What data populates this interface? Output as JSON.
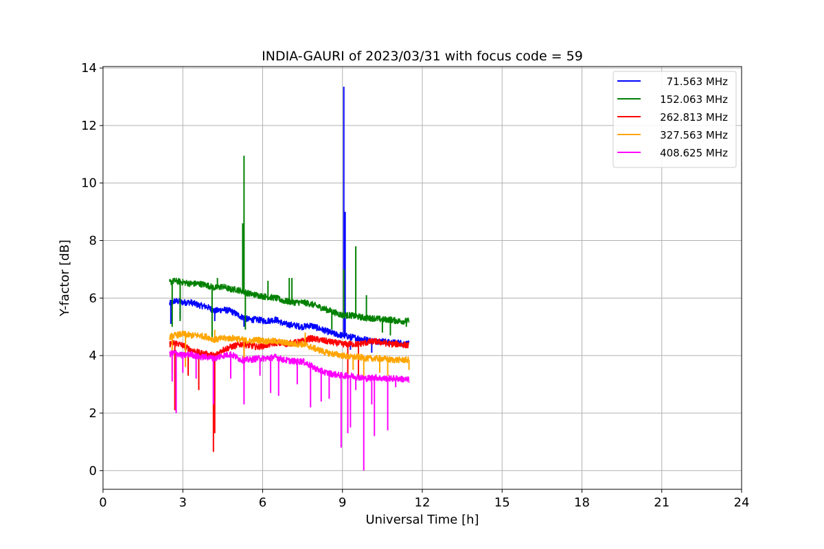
{
  "chart_data": {
    "type": "line",
    "title": "INDIA-GAURI of 2023/03/31 with focus code = 59",
    "xlabel": "Universal Time [h]",
    "ylabel": "Y-factor [dB]",
    "xlim": [
      0,
      24
    ],
    "ylim": [
      -0.65,
      14.05
    ],
    "xticks": [
      0,
      3,
      6,
      9,
      12,
      15,
      18,
      21,
      24
    ],
    "xtick_labels": [
      "0",
      "3",
      "6",
      "9",
      "12",
      "15",
      "18",
      "21",
      "24"
    ],
    "yticks": [
      0,
      2,
      4,
      6,
      8,
      10,
      12,
      14
    ],
    "ytick_labels": [
      "0",
      "2",
      "4",
      "6",
      "8",
      "10",
      "12",
      "14"
    ],
    "grid": true,
    "legend_position": "top-right",
    "series": [
      {
        "name": "  71.563 MHz",
        "color": "#0000ff",
        "x": [
          2.5,
          2.7,
          3.0,
          3.3,
          3.6,
          3.9,
          4.2,
          4.5,
          4.8,
          5.0,
          5.2,
          5.5,
          5.8,
          6.1,
          6.5,
          6.8,
          7.2,
          7.5,
          7.8,
          8.1,
          8.4,
          8.7,
          9.0,
          9.3,
          9.6,
          9.9,
          10.2,
          10.5,
          10.8,
          11.1,
          11.5
        ],
        "y": [
          5.8,
          5.9,
          5.85,
          5.85,
          5.75,
          5.7,
          5.55,
          5.6,
          5.55,
          5.45,
          5.35,
          5.25,
          5.25,
          5.2,
          5.25,
          5.1,
          5.05,
          5.0,
          5.05,
          4.95,
          4.85,
          4.75,
          4.7,
          4.65,
          4.6,
          4.55,
          4.5,
          4.5,
          4.45,
          4.45,
          4.4
        ],
        "spikes": [
          [
            2.55,
            5.1
          ],
          [
            2.9,
            5.3
          ],
          [
            4.2,
            5.2
          ],
          [
            5.3,
            5.0
          ],
          [
            9.05,
            13.35
          ],
          [
            9.1,
            9.0
          ],
          [
            9.3,
            4.2
          ],
          [
            10.1,
            4.1
          ]
        ]
      },
      {
        "name": "152.063 MHz",
        "color": "#008000",
        "x": [
          2.5,
          2.7,
          3.0,
          3.3,
          3.6,
          3.9,
          4.2,
          4.5,
          4.8,
          5.0,
          5.2,
          5.5,
          5.8,
          6.1,
          6.5,
          6.8,
          7.2,
          7.5,
          7.8,
          8.1,
          8.4,
          8.7,
          9.0,
          9.3,
          9.6,
          9.9,
          10.2,
          10.5,
          10.8,
          11.1,
          11.5
        ],
        "y": [
          6.55,
          6.6,
          6.55,
          6.5,
          6.5,
          6.45,
          6.35,
          6.4,
          6.3,
          6.3,
          6.25,
          6.15,
          6.1,
          6.05,
          6.0,
          5.9,
          5.85,
          5.85,
          5.8,
          5.7,
          5.6,
          5.5,
          5.4,
          5.4,
          5.35,
          5.3,
          5.3,
          5.25,
          5.25,
          5.2,
          5.2
        ],
        "spikes": [
          [
            2.6,
            5.0
          ],
          [
            2.9,
            5.2
          ],
          [
            4.1,
            4.6
          ],
          [
            4.3,
            6.7
          ],
          [
            5.25,
            8.6
          ],
          [
            5.3,
            10.95
          ],
          [
            5.35,
            4.9
          ],
          [
            6.2,
            6.6
          ],
          [
            7.0,
            6.7
          ],
          [
            7.1,
            6.7
          ],
          [
            8.6,
            4.9
          ],
          [
            9.05,
            7.0
          ],
          [
            9.5,
            7.8
          ],
          [
            9.9,
            6.1
          ],
          [
            10.5,
            4.8
          ],
          [
            10.8,
            4.7
          ],
          [
            11.4,
            5.0
          ]
        ]
      },
      {
        "name": "262.813 MHz",
        "color": "#ff0000",
        "x": [
          2.5,
          2.7,
          3.0,
          3.3,
          3.6,
          3.9,
          4.2,
          4.5,
          4.8,
          5.0,
          5.2,
          5.5,
          5.8,
          6.1,
          6.5,
          6.8,
          7.2,
          7.5,
          7.8,
          8.1,
          8.4,
          8.7,
          9.0,
          9.3,
          9.6,
          9.9,
          10.2,
          10.5,
          10.8,
          11.1,
          11.5
        ],
        "y": [
          4.4,
          4.45,
          4.35,
          4.2,
          4.1,
          4.05,
          4.0,
          4.2,
          4.3,
          4.35,
          4.4,
          4.35,
          4.3,
          4.35,
          4.45,
          4.4,
          4.45,
          4.5,
          4.6,
          4.55,
          4.5,
          4.45,
          4.4,
          4.4,
          4.4,
          4.45,
          4.5,
          4.45,
          4.4,
          4.4,
          4.35
        ],
        "spikes": [
          [
            2.7,
            2.1
          ],
          [
            3.2,
            3.3
          ],
          [
            3.6,
            2.8
          ],
          [
            4.15,
            0.65
          ],
          [
            4.2,
            1.3
          ],
          [
            5.3,
            3.5
          ],
          [
            9.2,
            2.0
          ],
          [
            9.6,
            3.2
          ]
        ]
      },
      {
        "name": "327.563 MHz",
        "color": "#ffa500",
        "x": [
          2.5,
          2.7,
          3.0,
          3.3,
          3.6,
          3.9,
          4.2,
          4.5,
          4.8,
          5.0,
          5.2,
          5.5,
          5.8,
          6.1,
          6.5,
          6.8,
          7.2,
          7.5,
          7.8,
          8.1,
          8.4,
          8.7,
          9.0,
          9.3,
          9.6,
          9.9,
          10.2,
          10.5,
          10.8,
          11.1,
          11.5
        ],
        "y": [
          4.65,
          4.7,
          4.75,
          4.7,
          4.7,
          4.65,
          4.55,
          4.6,
          4.6,
          4.6,
          4.55,
          4.5,
          4.55,
          4.5,
          4.5,
          4.45,
          4.4,
          4.4,
          4.3,
          4.2,
          4.1,
          4.05,
          4.0,
          3.95,
          3.95,
          3.9,
          3.9,
          3.9,
          3.85,
          3.85,
          3.85
        ],
        "spikes": [
          [
            2.6,
            3.4
          ],
          [
            3.1,
            3.6
          ],
          [
            4.2,
            4.9
          ],
          [
            5.3,
            3.9
          ],
          [
            7.6,
            4.8
          ],
          [
            9.4,
            3.5
          ],
          [
            9.8,
            3.2
          ],
          [
            10.4,
            3.4
          ],
          [
            10.7,
            3.3
          ],
          [
            11.5,
            3.5
          ]
        ]
      },
      {
        "name": "408.625 MHz",
        "color": "#ff00ff",
        "x": [
          2.5,
          2.7,
          3.0,
          3.3,
          3.6,
          3.9,
          4.2,
          4.5,
          4.8,
          5.0,
          5.2,
          5.5,
          5.8,
          6.1,
          6.5,
          6.8,
          7.2,
          7.5,
          7.8,
          8.1,
          8.4,
          8.7,
          9.0,
          9.3,
          9.6,
          9.9,
          10.2,
          10.5,
          10.8,
          11.1,
          11.5
        ],
        "y": [
          4.05,
          4.1,
          4.0,
          4.05,
          3.95,
          3.95,
          3.9,
          4.0,
          4.05,
          3.95,
          3.85,
          3.85,
          3.9,
          3.9,
          3.95,
          3.85,
          3.8,
          3.8,
          3.65,
          3.5,
          3.4,
          3.35,
          3.3,
          3.3,
          3.25,
          3.2,
          3.25,
          3.2,
          3.2,
          3.2,
          3.15
        ],
        "spikes": [
          [
            2.6,
            3.1
          ],
          [
            2.75,
            2.0
          ],
          [
            3.0,
            3.4
          ],
          [
            3.5,
            3.2
          ],
          [
            4.15,
            2.3
          ],
          [
            4.8,
            3.2
          ],
          [
            5.3,
            2.3
          ],
          [
            5.9,
            3.3
          ],
          [
            6.3,
            2.7
          ],
          [
            6.6,
            2.6
          ],
          [
            7.3,
            3.0
          ],
          [
            7.8,
            2.2
          ],
          [
            8.2,
            2.4
          ],
          [
            8.5,
            2.5
          ],
          [
            8.95,
            0.8
          ],
          [
            9.2,
            1.3
          ],
          [
            9.3,
            1.5
          ],
          [
            9.5,
            2.8
          ],
          [
            9.8,
            0.0
          ],
          [
            10.1,
            2.3
          ],
          [
            10.2,
            1.2
          ],
          [
            10.7,
            1.4
          ],
          [
            11.0,
            2.9
          ]
        ]
      }
    ]
  }
}
